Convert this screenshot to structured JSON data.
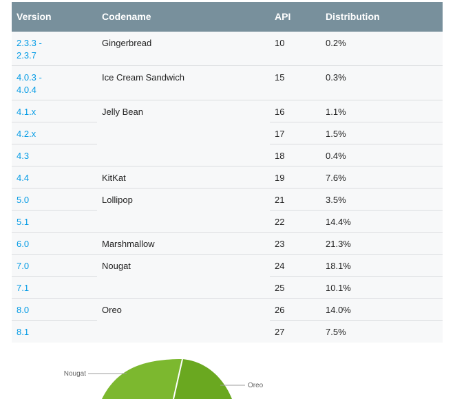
{
  "table": {
    "headers": {
      "version": "Version",
      "codename": "Codename",
      "api": "API",
      "distribution": "Distribution"
    },
    "rows": [
      {
        "version": "2.3.3 - 2.3.7",
        "codename": "Gingerbread",
        "api": "10",
        "distribution": "0.2%"
      },
      {
        "version": "4.0.3 - 4.0.4",
        "codename": "Ice Cream Sandwich",
        "api": "15",
        "distribution": "0.3%"
      },
      {
        "version": "4.1.x",
        "codename": "Jelly Bean",
        "api": "16",
        "distribution": "1.1%"
      },
      {
        "version": "4.2.x",
        "codename": "",
        "api": "17",
        "distribution": "1.5%"
      },
      {
        "version": "4.3",
        "codename": "",
        "api": "18",
        "distribution": "0.4%"
      },
      {
        "version": "4.4",
        "codename": "KitKat",
        "api": "19",
        "distribution": "7.6%"
      },
      {
        "version": "5.0",
        "codename": "Lollipop",
        "api": "21",
        "distribution": "3.5%"
      },
      {
        "version": "5.1",
        "codename": "",
        "api": "22",
        "distribution": "14.4%"
      },
      {
        "version": "6.0",
        "codename": "Marshmallow",
        "api": "23",
        "distribution": "21.3%"
      },
      {
        "version": "7.0",
        "codename": "Nougat",
        "api": "24",
        "distribution": "18.1%"
      },
      {
        "version": "7.1",
        "codename": "",
        "api": "25",
        "distribution": "10.1%"
      },
      {
        "version": "8.0",
        "codename": "Oreo",
        "api": "26",
        "distribution": "14.0%"
      },
      {
        "version": "8.1",
        "codename": "",
        "api": "27",
        "distribution": "7.5%"
      }
    ]
  },
  "chart": {
    "labels": {
      "nougat": "Nougat",
      "oreo": "Oreo"
    },
    "colors": {
      "nougat": "#7cb82f",
      "oreo": "#6aa820",
      "leader": "#9e9e9e"
    }
  },
  "colors": {
    "header_bg": "#78909c",
    "link": "#039be5",
    "row_bg": "#f7f8f9",
    "rule": "#dadcdf"
  }
}
